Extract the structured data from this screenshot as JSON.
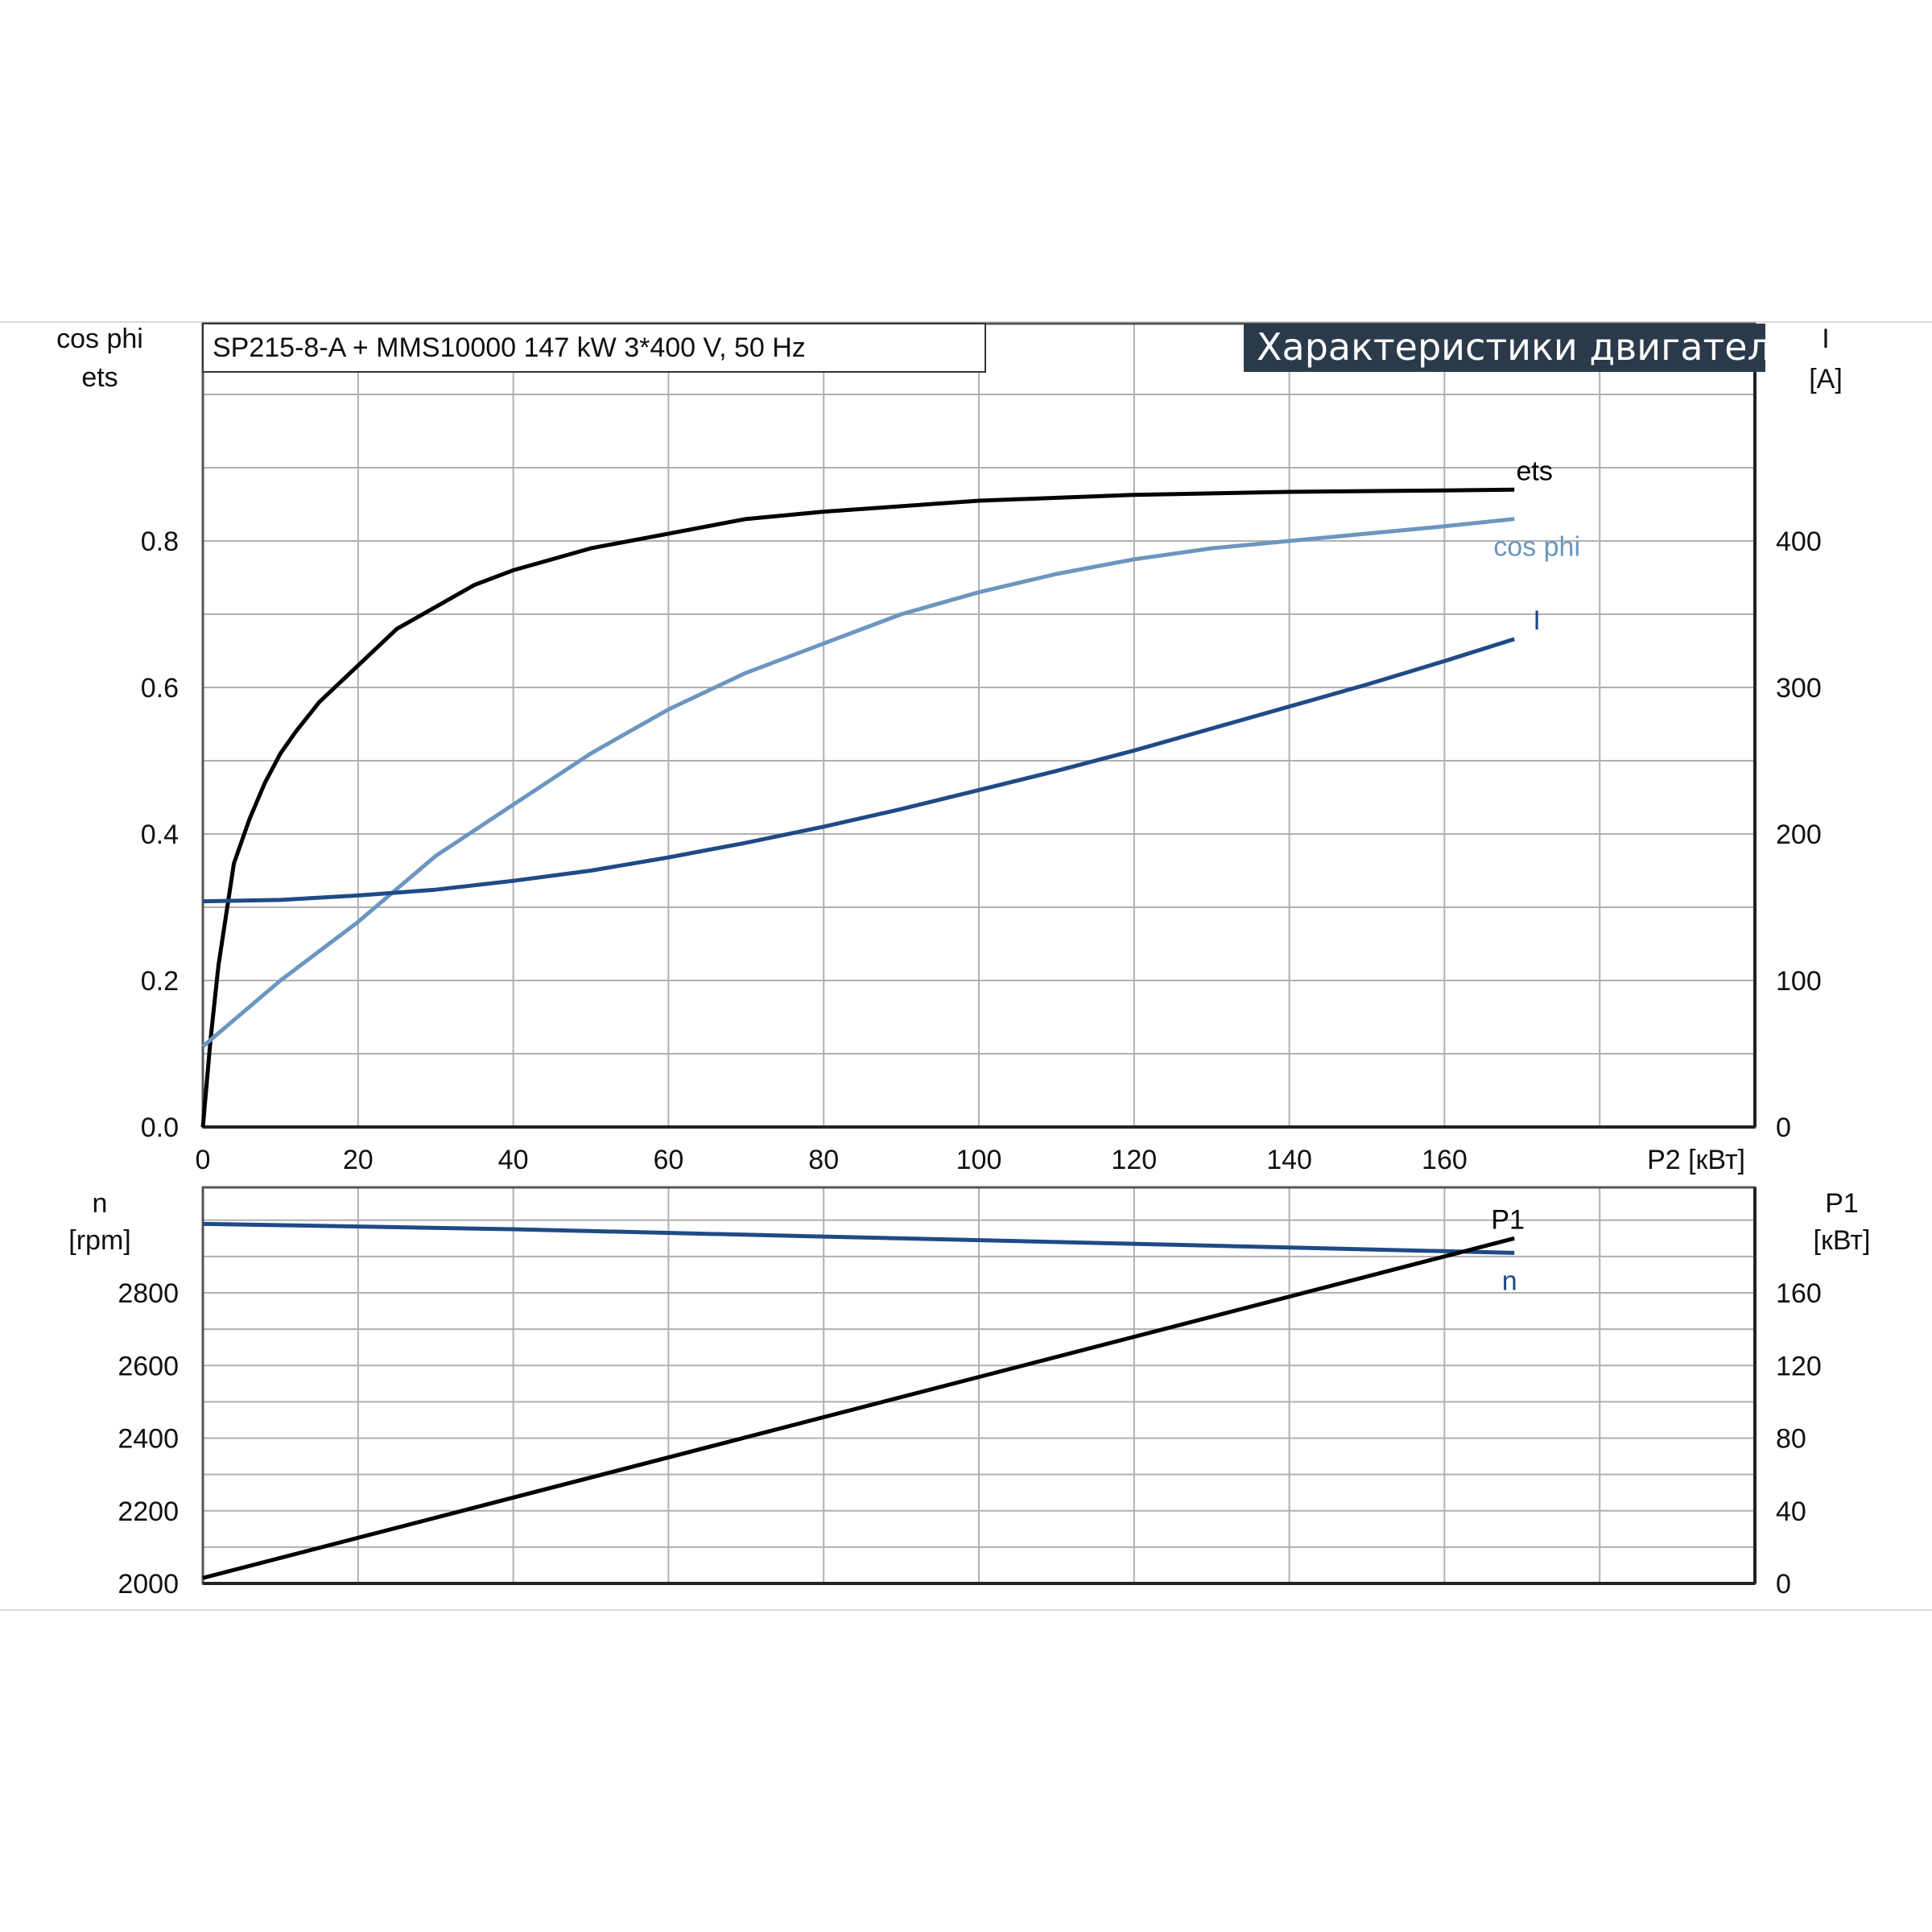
{
  "chart_data": [
    {
      "type": "line",
      "title": "SP215-8-A + MMS10000   147 kW   3*400 V, 50 Hz",
      "badge": "Характеристики двигателя",
      "xlabel": "P2 [кВт]",
      "ylabel_left": [
        "cos phi",
        "ets"
      ],
      "ylabel_right": [
        "I",
        "[A]"
      ],
      "xlim": [
        0,
        200
      ],
      "ylim_left": [
        0,
        0.8
      ],
      "ylim_right": [
        0,
        400
      ],
      "x_ticks": [
        "0",
        "20",
        "40",
        "60",
        "80",
        "100",
        "120",
        "140",
        "160"
      ],
      "y_ticks_left": [
        "0.0",
        "0.2",
        "0.4",
        "0.6",
        "0.8"
      ],
      "y_ticks_right": [
        "0",
        "100",
        "200",
        "300",
        "400"
      ],
      "grid": true,
      "series": [
        {
          "name": "ets",
          "axis": "left",
          "color": "#000000",
          "x": [
            0,
            1,
            2,
            4,
            6,
            8,
            10,
            12,
            15,
            20,
            25,
            30,
            35,
            40,
            50,
            60,
            70,
            80,
            100,
            120,
            140,
            160,
            169
          ],
          "y": [
            0.0,
            0.12,
            0.22,
            0.36,
            0.42,
            0.47,
            0.51,
            0.54,
            0.58,
            0.63,
            0.68,
            0.71,
            0.74,
            0.76,
            0.79,
            0.81,
            0.83,
            0.84,
            0.855,
            0.863,
            0.867,
            0.869,
            0.87
          ]
        },
        {
          "name": "cos phi",
          "axis": "left",
          "color": "#6c96bf",
          "x": [
            0,
            10,
            20,
            30,
            40,
            50,
            60,
            70,
            80,
            90,
            100,
            110,
            120,
            130,
            140,
            150,
            160,
            169
          ],
          "y": [
            0.11,
            0.2,
            0.28,
            0.37,
            0.44,
            0.51,
            0.57,
            0.62,
            0.66,
            0.7,
            0.73,
            0.755,
            0.775,
            0.79,
            0.8,
            0.81,
            0.82,
            0.83
          ]
        },
        {
          "name": "I",
          "axis": "right",
          "color": "#1f4a86",
          "x": [
            0,
            10,
            20,
            30,
            40,
            50,
            60,
            70,
            80,
            90,
            100,
            110,
            120,
            130,
            140,
            150,
            160,
            169
          ],
          "y": [
            154,
            155,
            158,
            162,
            168,
            175,
            184,
            194,
            205,
            217,
            230,
            243,
            257,
            272,
            287,
            302,
            318,
            333
          ]
        }
      ]
    },
    {
      "type": "line",
      "xlim": [
        0,
        200
      ],
      "ylabel_left": [
        "n",
        "[rpm]"
      ],
      "ylabel_right": [
        "P1",
        "[кВт]"
      ],
      "ylim_left": [
        2000,
        2800
      ],
      "ylim_right": [
        0,
        160
      ],
      "y_ticks_left": [
        "2000",
        "2200",
        "2400",
        "2600",
        "2800"
      ],
      "y_ticks_right": [
        "0",
        "40",
        "80",
        "120",
        "160"
      ],
      "grid": true,
      "series": [
        {
          "name": "n",
          "axis": "left",
          "color": "#1f4a86",
          "x": [
            0,
            40,
            80,
            120,
            169
          ],
          "y": [
            2990,
            2975,
            2955,
            2935,
            2910
          ]
        },
        {
          "name": "P1",
          "axis": "right",
          "color": "#000000",
          "x": [
            0,
            169
          ],
          "y": [
            3,
            190
          ]
        }
      ]
    }
  ]
}
